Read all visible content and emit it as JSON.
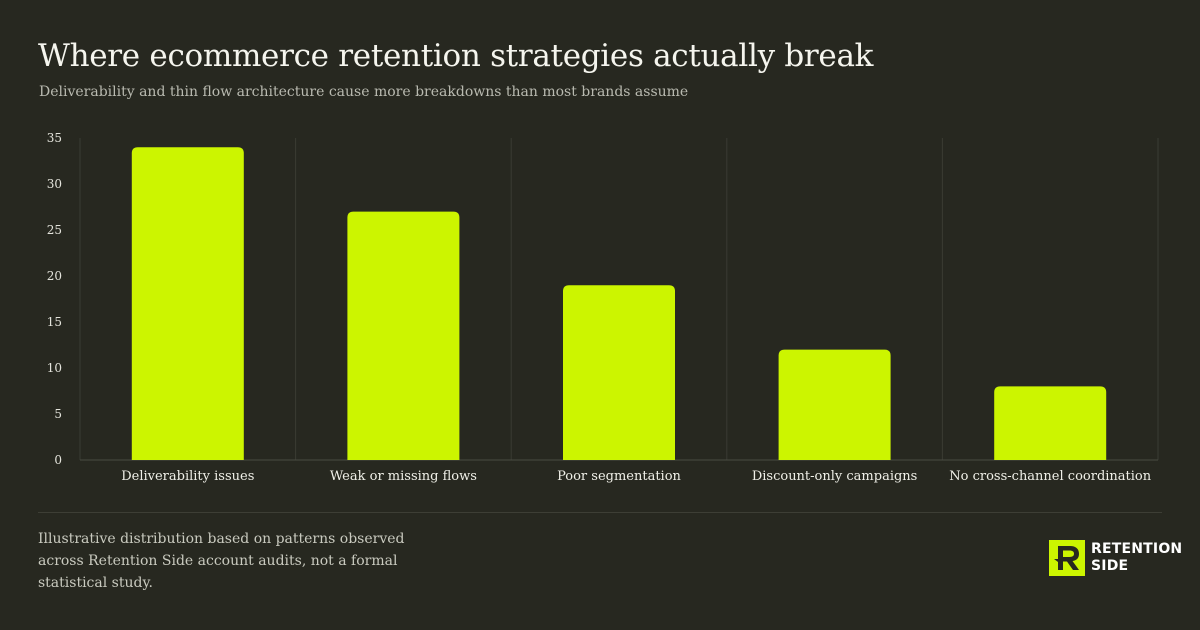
{
  "header": {
    "title": "Where ecommerce retention strategies actually break",
    "subtitle": "Deliverability and thin flow architecture cause more breakdowns than most brands assume"
  },
  "chart_data": {
    "type": "bar",
    "title": "",
    "xlabel": "",
    "ylabel": "",
    "categories": [
      "Deliverability issues",
      "Weak or missing flows",
      "Poor segmentation",
      "Discount-only campaigns",
      "No cross-channel coordination"
    ],
    "values": [
      34,
      27,
      19,
      12,
      8
    ],
    "ylim": [
      0,
      35
    ],
    "yticks": [
      0,
      5,
      10,
      15,
      20,
      25,
      30,
      35
    ],
    "grid": "vertical separators between categories",
    "legend": "none",
    "bar_color": "#ccf500"
  },
  "footer": {
    "note": "Illustrative distribution based on patterns observed across Retention Side account audits, not a formal statistical study."
  },
  "brand": {
    "line1": "RETENTION",
    "line2": "SIDE",
    "icon": "retention-side-logo-icon",
    "accent": "#ccf500"
  }
}
